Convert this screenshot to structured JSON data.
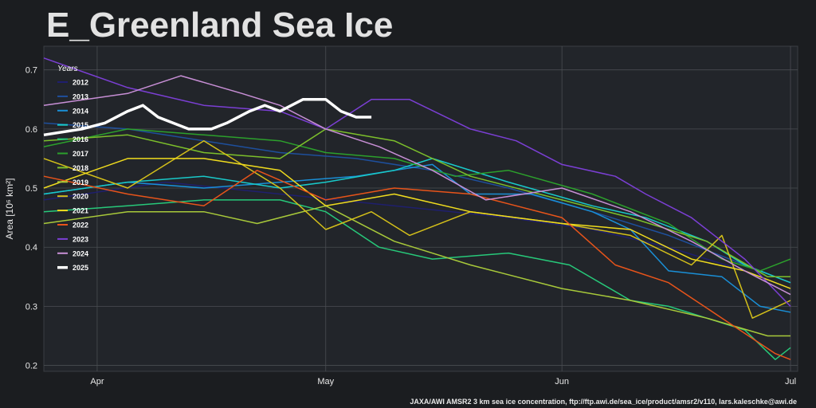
{
  "chart_data": {
    "type": "line",
    "title": "E_Greenland Sea Ice",
    "ylabel": "Area [10⁶ km²]",
    "xlabel": "",
    "x_start": "03-25",
    "x_end": "07-01",
    "x_ticks": [
      {
        "label": "Apr",
        "date": "04-01"
      },
      {
        "label": "May",
        "date": "05-01"
      },
      {
        "label": "Jun",
        "date": "06-01"
      },
      {
        "label": "Jul",
        "date": "07-01"
      }
    ],
    "ylim": [
      0.19,
      0.74
    ],
    "yticks": [
      "0.2",
      "0.3",
      "0.4",
      "0.5",
      "0.6",
      "0.7"
    ],
    "grid": true,
    "legend_title": "Years",
    "legend_position": "top-left",
    "credit": "JAXA/AWI AMSR2 3 km sea ice concentration, ftp://ftp.awi.de/sea_ice/product/amsr2/v110, lars.kaleschke@awi.de",
    "series": [
      {
        "name": "2012",
        "color": "#1f1f6e",
        "width": 1.5,
        "points": [
          [
            "03-25",
            0.48
          ],
          [
            "04-10",
            0.51
          ],
          [
            "04-25",
            0.49
          ],
          [
            "05-10",
            0.47
          ],
          [
            "05-25",
            0.45
          ],
          [
            "06-05",
            0.43
          ],
          [
            "06-15",
            0.4
          ],
          [
            "06-25",
            0.36
          ],
          [
            "07-01",
            0.33
          ]
        ]
      },
      {
        "name": "2013",
        "color": "#1e4f9c",
        "width": 1.5,
        "points": [
          [
            "03-25",
            0.61
          ],
          [
            "04-05",
            0.6
          ],
          [
            "04-15",
            0.58
          ],
          [
            "04-25",
            0.56
          ],
          [
            "05-05",
            0.55
          ],
          [
            "05-15",
            0.53
          ],
          [
            "05-25",
            0.5
          ],
          [
            "06-05",
            0.46
          ],
          [
            "06-15",
            0.42
          ],
          [
            "06-25",
            0.37
          ],
          [
            "07-01",
            0.34
          ]
        ]
      },
      {
        "name": "2014",
        "color": "#1a8fd6",
        "width": 1.5,
        "points": [
          [
            "03-25",
            0.49
          ],
          [
            "04-05",
            0.51
          ],
          [
            "04-15",
            0.5
          ],
          [
            "04-25",
            0.51
          ],
          [
            "05-05",
            0.52
          ],
          [
            "05-15",
            0.54
          ],
          [
            "05-20",
            0.49
          ],
          [
            "05-28",
            0.49
          ],
          [
            "06-05",
            0.46
          ],
          [
            "06-10",
            0.43
          ],
          [
            "06-15",
            0.36
          ],
          [
            "06-22",
            0.35
          ],
          [
            "06-27",
            0.3
          ],
          [
            "07-01",
            0.29
          ]
        ]
      },
      {
        "name": "2015",
        "color": "#19c9c9",
        "width": 1.5,
        "points": [
          [
            "03-25",
            0.49
          ],
          [
            "04-05",
            0.51
          ],
          [
            "04-15",
            0.52
          ],
          [
            "04-25",
            0.5
          ],
          [
            "05-01",
            0.51
          ],
          [
            "05-10",
            0.53
          ],
          [
            "05-15",
            0.55
          ],
          [
            "05-25",
            0.51
          ],
          [
            "06-05",
            0.47
          ],
          [
            "06-12",
            0.45
          ],
          [
            "06-20",
            0.41
          ],
          [
            "06-25",
            0.37
          ],
          [
            "07-01",
            0.34
          ]
        ]
      },
      {
        "name": "2016",
        "color": "#27c97a",
        "width": 1.5,
        "points": [
          [
            "03-25",
            0.46
          ],
          [
            "04-05",
            0.47
          ],
          [
            "04-15",
            0.48
          ],
          [
            "04-25",
            0.48
          ],
          [
            "05-01",
            0.46
          ],
          [
            "05-08",
            0.4
          ],
          [
            "05-15",
            0.38
          ],
          [
            "05-25",
            0.39
          ],
          [
            "06-02",
            0.37
          ],
          [
            "06-10",
            0.31
          ],
          [
            "06-15",
            0.3
          ],
          [
            "06-20",
            0.28
          ],
          [
            "06-25",
            0.26
          ],
          [
            "06-29",
            0.21
          ],
          [
            "07-01",
            0.23
          ]
        ]
      },
      {
        "name": "2017",
        "color": "#2ca02c",
        "width": 1.5,
        "points": [
          [
            "03-25",
            0.57
          ],
          [
            "04-05",
            0.6
          ],
          [
            "04-15",
            0.59
          ],
          [
            "04-25",
            0.58
          ],
          [
            "05-01",
            0.56
          ],
          [
            "05-10",
            0.55
          ],
          [
            "05-18",
            0.52
          ],
          [
            "05-25",
            0.53
          ],
          [
            "06-05",
            0.49
          ],
          [
            "06-15",
            0.44
          ],
          [
            "06-22",
            0.38
          ],
          [
            "06-27",
            0.36
          ],
          [
            "07-01",
            0.38
          ]
        ]
      },
      {
        "name": "2018",
        "color": "#7cbf2b",
        "width": 1.5,
        "points": [
          [
            "03-25",
            0.58
          ],
          [
            "04-05",
            0.59
          ],
          [
            "04-15",
            0.56
          ],
          [
            "04-25",
            0.55
          ],
          [
            "05-01",
            0.6
          ],
          [
            "05-10",
            0.58
          ],
          [
            "05-20",
            0.52
          ],
          [
            "06-01",
            0.48
          ],
          [
            "06-10",
            0.45
          ],
          [
            "06-20",
            0.41
          ],
          [
            "06-28",
            0.35
          ],
          [
            "07-01",
            0.35
          ]
        ]
      },
      {
        "name": "2019",
        "color": "#a8c93a",
        "width": 1.5,
        "points": [
          [
            "03-25",
            0.44
          ],
          [
            "04-05",
            0.46
          ],
          [
            "04-15",
            0.46
          ],
          [
            "04-22",
            0.44
          ],
          [
            "05-01",
            0.47
          ],
          [
            "05-10",
            0.41
          ],
          [
            "05-20",
            0.37
          ],
          [
            "06-01",
            0.33
          ],
          [
            "06-10",
            0.31
          ],
          [
            "06-20",
            0.28
          ],
          [
            "06-28",
            0.25
          ],
          [
            "07-01",
            0.25
          ]
        ]
      },
      {
        "name": "2020",
        "color": "#d4c01a",
        "width": 1.5,
        "points": [
          [
            "03-25",
            0.55
          ],
          [
            "04-05",
            0.5
          ],
          [
            "04-15",
            0.58
          ],
          [
            "04-25",
            0.5
          ],
          [
            "05-01",
            0.43
          ],
          [
            "05-07",
            0.46
          ],
          [
            "05-12",
            0.42
          ],
          [
            "05-20",
            0.46
          ],
          [
            "06-01",
            0.44
          ],
          [
            "06-10",
            0.42
          ],
          [
            "06-18",
            0.37
          ],
          [
            "06-22",
            0.42
          ],
          [
            "06-26",
            0.28
          ],
          [
            "07-01",
            0.31
          ]
        ]
      },
      {
        "name": "2021",
        "color": "#f0dc1e",
        "width": 1.5,
        "points": [
          [
            "03-25",
            0.5
          ],
          [
            "04-05",
            0.55
          ],
          [
            "04-15",
            0.55
          ],
          [
            "04-25",
            0.53
          ],
          [
            "05-01",
            0.47
          ],
          [
            "05-10",
            0.49
          ],
          [
            "05-20",
            0.46
          ],
          [
            "06-01",
            0.44
          ],
          [
            "06-10",
            0.43
          ],
          [
            "06-18",
            0.38
          ],
          [
            "06-25",
            0.36
          ],
          [
            "06-29",
            0.34
          ],
          [
            "07-01",
            0.33
          ]
        ]
      },
      {
        "name": "2022",
        "color": "#e8541a",
        "width": 1.5,
        "points": [
          [
            "03-25",
            0.52
          ],
          [
            "04-05",
            0.49
          ],
          [
            "04-15",
            0.47
          ],
          [
            "04-22",
            0.53
          ],
          [
            "05-01",
            0.48
          ],
          [
            "05-10",
            0.5
          ],
          [
            "05-20",
            0.49
          ],
          [
            "06-01",
            0.45
          ],
          [
            "06-08",
            0.37
          ],
          [
            "06-15",
            0.34
          ],
          [
            "06-22",
            0.28
          ],
          [
            "06-29",
            0.22
          ],
          [
            "07-01",
            0.21
          ]
        ]
      },
      {
        "name": "2023",
        "color": "#7b3fd4",
        "width": 1.5,
        "points": [
          [
            "03-25",
            0.72
          ],
          [
            "04-05",
            0.67
          ],
          [
            "04-15",
            0.64
          ],
          [
            "04-25",
            0.63
          ],
          [
            "05-01",
            0.6
          ],
          [
            "05-07",
            0.65
          ],
          [
            "05-12",
            0.65
          ],
          [
            "05-20",
            0.6
          ],
          [
            "05-26",
            0.58
          ],
          [
            "06-01",
            0.54
          ],
          [
            "06-08",
            0.52
          ],
          [
            "06-12",
            0.49
          ],
          [
            "06-18",
            0.45
          ],
          [
            "06-25",
            0.38
          ],
          [
            "07-01",
            0.3
          ]
        ]
      },
      {
        "name": "2024",
        "color": "#c88fd6",
        "width": 1.5,
        "points": [
          [
            "03-25",
            0.64
          ],
          [
            "04-05",
            0.66
          ],
          [
            "04-12",
            0.69
          ],
          [
            "04-20",
            0.66
          ],
          [
            "04-25",
            0.64
          ],
          [
            "05-01",
            0.6
          ],
          [
            "05-08",
            0.57
          ],
          [
            "05-15",
            0.53
          ],
          [
            "05-22",
            0.48
          ],
          [
            "06-01",
            0.5
          ],
          [
            "06-10",
            0.46
          ],
          [
            "06-18",
            0.41
          ],
          [
            "06-25",
            0.36
          ],
          [
            "07-01",
            0.32
          ]
        ]
      },
      {
        "name": "2025",
        "color": "#ffffff",
        "width": 3.5,
        "points": [
          [
            "03-25",
            0.59
          ],
          [
            "03-30",
            0.6
          ],
          [
            "04-02",
            0.61
          ],
          [
            "04-05",
            0.63
          ],
          [
            "04-07",
            0.64
          ],
          [
            "04-09",
            0.62
          ],
          [
            "04-13",
            0.6
          ],
          [
            "04-16",
            0.6
          ],
          [
            "04-18",
            0.61
          ],
          [
            "04-21",
            0.63
          ],
          [
            "04-23",
            0.64
          ],
          [
            "04-25",
            0.63
          ],
          [
            "04-28",
            0.65
          ],
          [
            "05-01",
            0.65
          ],
          [
            "05-03",
            0.63
          ],
          [
            "05-05",
            0.62
          ],
          [
            "05-07",
            0.62
          ]
        ]
      }
    ]
  }
}
